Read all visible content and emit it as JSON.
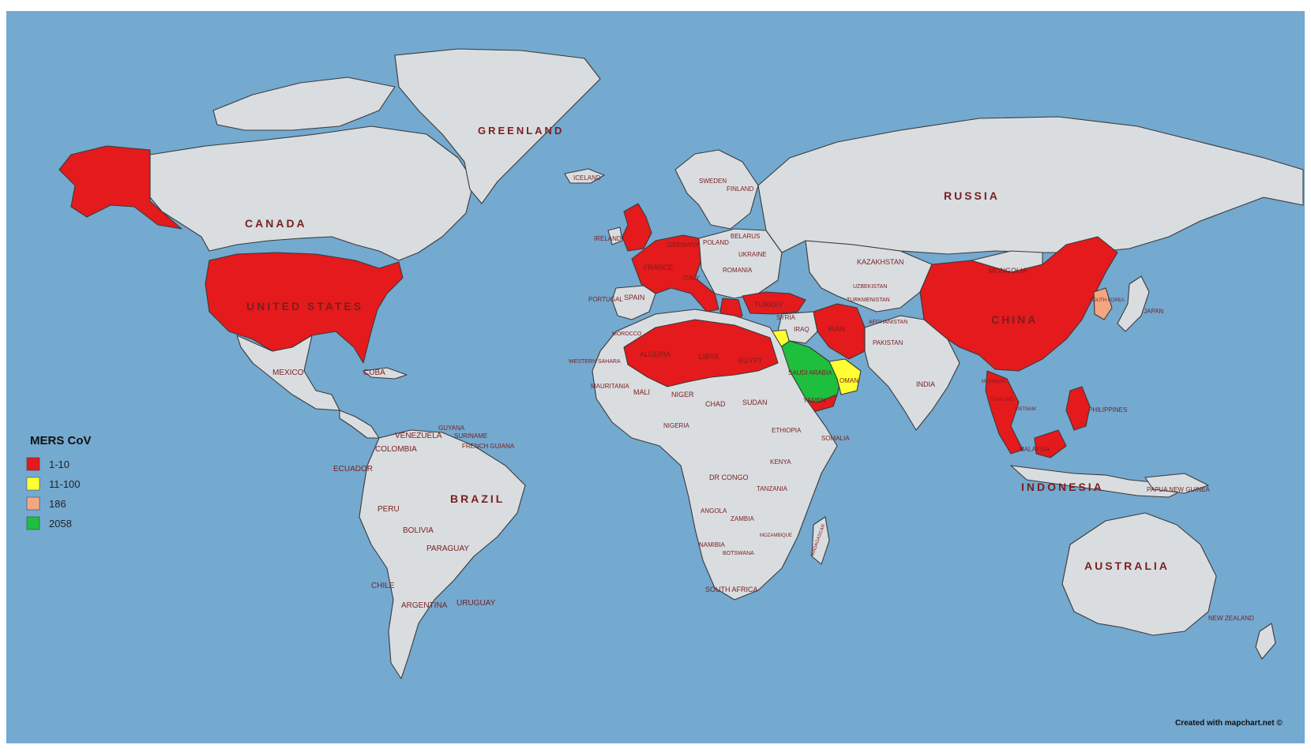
{
  "map": {
    "ocean_color": "#74a9d0",
    "land_color": "#d9dde0",
    "label_color": "#7a1f1f"
  },
  "legend": {
    "title": "MERS CoV",
    "items": [
      {
        "label": "1-10",
        "color": "#e41a1c"
      },
      {
        "label": "11-100",
        "color": "#ffff33"
      },
      {
        "label": "186",
        "color": "#f4a582"
      },
      {
        "label": "2058",
        "color": "#1dbf3d"
      }
    ]
  },
  "credit": "Created with mapchart.net ©",
  "big_labels": {
    "greenland": "GREENLAND",
    "canada": "CANADA",
    "united_states": "UNITED STATES",
    "russia": "RUSSIA",
    "china": "CHINA",
    "brazil": "BRAZIL",
    "australia": "AUSTRALIA",
    "indonesia": "INDONESIA"
  },
  "labels": {
    "mexico": "MEXICO",
    "cuba": "CUBA",
    "venezuela": "VENEZUELA",
    "colombia": "COLOMBIA",
    "ecuador": "ECUADOR",
    "peru": "PERU",
    "bolivia": "BOLIVIA",
    "paraguay": "PARAGUAY",
    "chile": "CHILE",
    "argentina": "ARGENTINA",
    "uruguay": "URUGUAY",
    "guyana": "GUYANA",
    "suriname": "SURINAME",
    "french_guiana": "FRENCH GUIANA",
    "iceland": "ICELAND",
    "ireland": "IRELAND",
    "sweden": "SWEDEN",
    "finland": "FINLAND",
    "poland": "POLAND",
    "belarus": "BELARUS",
    "ukraine": "UKRAINE",
    "romania": "ROMANIA",
    "germany": "GERMANY",
    "france": "FRANCE",
    "spain": "SPAIN",
    "portugal": "PORTUGAL",
    "italy": "ITALY",
    "turkey": "TURKEY",
    "syria": "SYRIA",
    "iraq": "IRAQ",
    "iran": "IRAN",
    "saudi_arabia": "SAUDI ARABIA",
    "yemen": "YEMEN",
    "oman": "OMAN",
    "kazakhstan": "KAZAKHSTAN",
    "uzbekistan": "UZBEKISTAN",
    "turkmenistan": "TURKMENISTAN",
    "afghanistan": "AFGHANISTAN",
    "pakistan": "PAKISTAN",
    "india": "INDIA",
    "mongolia": "MONGOLIA",
    "japan": "JAPAN",
    "south_korea": "SOUTH KOREA",
    "philippines": "PHILIPPINES",
    "thailand": "THAILAND",
    "vietnam": "VIETNAM",
    "myanmar": "MYANMAR",
    "malaysia": "MALAYSIA",
    "papua_new_guinea": "PAPUA NEW GUINEA",
    "new_zealand": "NEW ZEALAND",
    "morocco": "MOROCCO",
    "western_sahara": "WESTERN SAHARA",
    "algeria": "ALGERIA",
    "libya": "LIBYA",
    "egypt": "EGYPT",
    "mauritania": "MAURITANIA",
    "mali": "MALI",
    "niger": "NIGER",
    "chad": "CHAD",
    "sudan": "SUDAN",
    "nigeria": "NIGERIA",
    "ethiopia": "ETHIOPIA",
    "somalia": "SOMALIA",
    "kenya": "KENYA",
    "dr_congo": "DR CONGO",
    "tanzania": "TANZANIA",
    "angola": "ANGOLA",
    "zambia": "ZAMBIA",
    "namibia": "NAMIBIA",
    "botswana": "BOTSWANA",
    "mozambique": "MOZAMBIQUE",
    "madagascar": "MADAGASCAR",
    "south_africa": "SOUTH AFRICA"
  }
}
